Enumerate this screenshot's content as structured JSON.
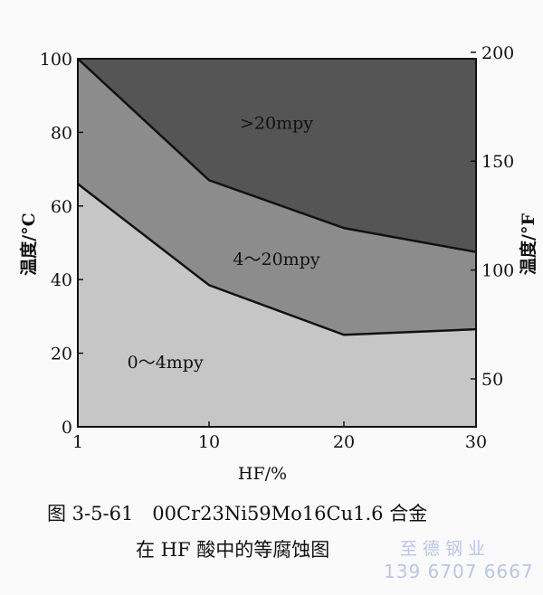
{
  "chart_data": {
    "type": "area",
    "title": "",
    "xlabel": "HF/%",
    "ylabel": "温度/°C",
    "y2label": "温度/°F",
    "x_ticks": [
      1,
      10,
      20,
      30
    ],
    "y_ticks": [
      0,
      20,
      40,
      60,
      80,
      100
    ],
    "y2_ticks": [
      50,
      100,
      150,
      200
    ],
    "xlim": [
      1,
      30
    ],
    "ylim": [
      0,
      100
    ],
    "y2lim": [
      28,
      197
    ],
    "grid": false,
    "boundaries": [
      {
        "name": "4mpy",
        "x": [
          1,
          10,
          20,
          30
        ],
        "y": [
          66,
          38.5,
          25,
          26.5
        ]
      },
      {
        "name": "20mpy",
        "x": [
          1,
          10,
          20,
          30
        ],
        "y": [
          100,
          67,
          54,
          47.5
        ]
      }
    ],
    "regions": [
      {
        "label": "0～4mpy",
        "color": "#c6c6c6",
        "label_at": [
          7,
          16
        ]
      },
      {
        "label": "4～20mpy",
        "color": "#8c8c8c",
        "label_at": [
          15,
          44
        ]
      },
      {
        "label": ">20mpy",
        "color": "#555555",
        "label_at": [
          15,
          81
        ]
      }
    ]
  },
  "caption": {
    "line1": "图 3-5-61　00Cr23Ni59Mo16Cu1.6 合金",
    "line2": "在 HF 酸中的等腐蚀图"
  },
  "watermark": {
    "line1": "至德钢业",
    "line2": "139 6707 6667"
  }
}
